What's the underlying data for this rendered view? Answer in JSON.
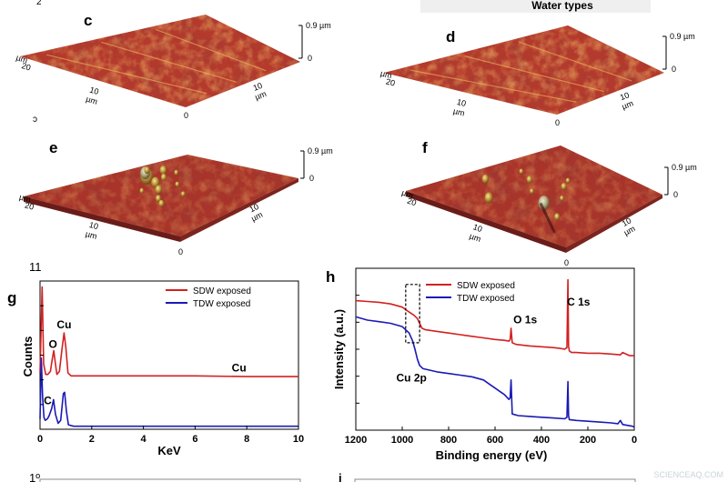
{
  "header": {
    "banner_text": "Water types",
    "corner_mark_top": "2",
    "corner_mark_mid": "ɔ",
    "number_label": "11",
    "bottom_left_mark": "1º",
    "bottom_right_mark": "i"
  },
  "afm_panels": [
    {
      "id": "c",
      "label": "c",
      "z_scale": "0.9 µm",
      "z_zero": "0",
      "left_axis": {
        "tick_top": "20",
        "tick_mid": "10",
        "unit": "µm"
      },
      "right_axis": {
        "tick_mid": "10",
        "unit": "µm",
        "origin": "0"
      },
      "surface": "smooth",
      "colors": {
        "base": "#b33a2c",
        "light": "#f0a53a",
        "dark": "#6a1a18"
      }
    },
    {
      "id": "d",
      "label": "d",
      "z_scale": "0.9 µm",
      "z_zero": "0",
      "left_axis": {
        "tick_top": "20",
        "tick_mid": "10",
        "unit": "µm"
      },
      "right_axis": {
        "tick_mid": "10",
        "unit": "µm",
        "origin": "0"
      },
      "surface": "smooth",
      "colors": {
        "base": "#b33a2c",
        "light": "#f0a53a",
        "dark": "#6a1a18"
      }
    },
    {
      "id": "e",
      "label": "e",
      "z_scale": "0.9 µm",
      "z_zero": "0",
      "left_axis": {
        "tick_top": "20",
        "tick_mid": "10",
        "unit": "µm"
      },
      "right_axis": {
        "tick_mid": "10",
        "unit": "µm",
        "origin": "0"
      },
      "surface": "peaks",
      "colors": {
        "base": "#a8342a",
        "light": "#e8c06a",
        "dark": "#5e1816"
      }
    },
    {
      "id": "f",
      "label": "f",
      "z_scale": "0.9 µm",
      "z_zero": "0",
      "left_axis": {
        "tick_top": "20",
        "tick_mid": "10",
        "unit": "µm"
      },
      "right_axis": {
        "tick_mid": "10",
        "unit": "µm",
        "origin": "0"
      },
      "surface": "peaks",
      "colors": {
        "base": "#a8342a",
        "light": "#e8c06a",
        "dark": "#5e1816"
      }
    }
  ],
  "chart_data": [
    {
      "panel": "g",
      "type": "line",
      "title": "",
      "xlabel": "KeV",
      "ylabel": "Counts",
      "xlim": [
        0,
        10
      ],
      "ylim": [
        0,
        100
      ],
      "x_ticks": [
        0,
        2,
        4,
        6,
        8,
        10
      ],
      "y_ticks_unlabeled": true,
      "legend": {
        "placement": "top-right",
        "entries": [
          "SDW exposed",
          "TDW exposed"
        ]
      },
      "annotations": [
        {
          "text": "Cu",
          "x": 0.93,
          "y": 68,
          "color": "#000000"
        },
        {
          "text": "O",
          "x": 0.5,
          "y": 55,
          "color": "#000000"
        },
        {
          "text": "C",
          "x": 0.3,
          "y": 17,
          "color": "#000000"
        },
        {
          "text": "Cu",
          "x": 7.7,
          "y": 39,
          "color": "#000000"
        }
      ],
      "series": [
        {
          "name": "SDW exposed",
          "color": "#d42020",
          "x": [
            0.0,
            0.08,
            0.14,
            0.22,
            0.3,
            0.4,
            0.48,
            0.53,
            0.58,
            0.65,
            0.75,
            0.85,
            0.93,
            1.0,
            1.08,
            1.2,
            1.5,
            2,
            4,
            6,
            8,
            10
          ],
          "y": [
            38,
            96,
            44,
            37,
            37,
            39,
            48,
            53,
            46,
            37,
            39,
            54,
            65,
            55,
            38,
            36,
            36,
            36,
            36,
            36,
            35.5,
            35.5
          ]
        },
        {
          "name": "TDW exposed",
          "color": "#1a1ab4",
          "x": [
            0.0,
            0.05,
            0.1,
            0.15,
            0.2,
            0.28,
            0.35,
            0.45,
            0.52,
            0.6,
            0.7,
            0.8,
            0.9,
            0.95,
            1.02,
            1.1,
            1.3,
            1.6,
            2,
            4,
            6,
            8,
            10
          ],
          "y": [
            7,
            48,
            22,
            8,
            6,
            7,
            9,
            14,
            20,
            10,
            4,
            6,
            24,
            25,
            12,
            3,
            2,
            2,
            2,
            2,
            2,
            2,
            2
          ]
        }
      ]
    },
    {
      "panel": "h",
      "type": "line",
      "title": "",
      "xlabel": "Binding energy (eV)",
      "ylabel": "Intensity (a.u.)",
      "xlim": [
        1200,
        0
      ],
      "ylim": [
        0,
        100
      ],
      "x_ticks": [
        1200,
        1000,
        800,
        600,
        400,
        200,
        0
      ],
      "y_ticks_unlabeled": true,
      "legend": {
        "placement": "top-center",
        "entries": [
          "SDW exposed",
          "TDW exposed"
        ]
      },
      "annotations": [
        {
          "text": "O 1s",
          "x": 470,
          "y": 66,
          "color": "#000000"
        },
        {
          "text": "C 1s",
          "x": 240,
          "y": 77,
          "color": "#000000"
        },
        {
          "text": "Cu 2p",
          "x": 960,
          "y": 30,
          "color": "#000000"
        }
      ],
      "highlight_box": {
        "x_range": [
          985,
          925
        ],
        "y_range": [
          54,
          90
        ]
      },
      "series": [
        {
          "name": "SDW exposed",
          "color": "#d42020",
          "x": [
            1200,
            1150,
            1100,
            1050,
            1000,
            970,
            950,
            935,
            925,
            915,
            900,
            850,
            800,
            750,
            700,
            650,
            600,
            560,
            540,
            535,
            531,
            526,
            510,
            480,
            450,
            400,
            350,
            320,
            300,
            290,
            286,
            283,
            280,
            270,
            250,
            200,
            150,
            100,
            60,
            50,
            20,
            0
          ],
          "y": [
            80,
            79.5,
            79,
            78,
            76,
            73,
            71,
            69,
            66,
            63,
            62,
            61,
            60,
            59,
            58,
            57,
            56,
            55.5,
            55,
            56,
            63,
            54,
            53,
            52.5,
            52,
            51.5,
            51,
            50.5,
            50,
            51,
            93,
            52,
            49,
            48,
            48,
            47.5,
            47.5,
            47,
            46.5,
            48,
            46,
            46
          ]
        },
        {
          "name": "TDW exposed",
          "color": "#1a1ab4",
          "x": [
            1200,
            1150,
            1100,
            1050,
            1000,
            970,
            955,
            945,
            935,
            925,
            910,
            880,
            850,
            800,
            750,
            700,
            650,
            620,
            600,
            580,
            560,
            540,
            535,
            531,
            526,
            500,
            450,
            400,
            350,
            300,
            290,
            286,
            283,
            280,
            250,
            200,
            150,
            100,
            70,
            60,
            50,
            30,
            10,
            0
          ],
          "y": [
            70,
            68,
            67,
            66,
            64,
            60,
            55,
            50,
            44,
            40,
            38,
            37,
            36,
            35,
            34,
            33,
            31,
            28,
            26,
            24,
            22,
            19,
            20,
            31,
            10,
            9,
            8.5,
            8,
            7.5,
            7,
            8,
            30,
            9,
            6.5,
            6,
            5.5,
            5,
            4.5,
            4,
            6,
            3.5,
            3,
            2.5,
            2
          ]
        }
      ]
    }
  ],
  "panel_labels": {
    "g": "g",
    "h": "h"
  },
  "watermark": "SCIENCEAQ.COM"
}
